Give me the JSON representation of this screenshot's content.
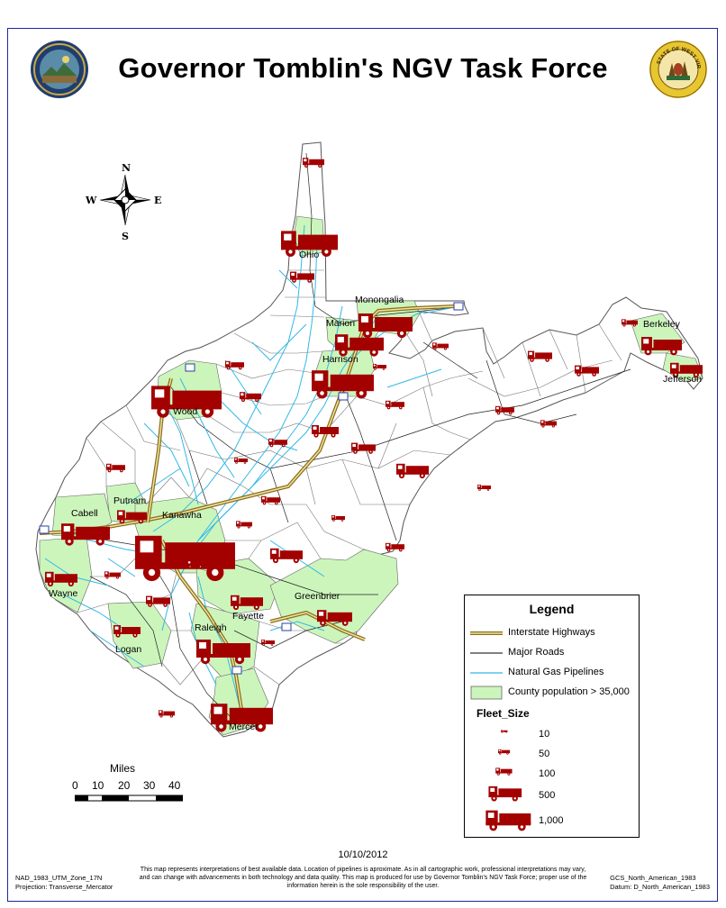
{
  "title": "Governor Tomblin's NGV Task Force",
  "seals": {
    "left_icon": "wv-governor-seal-icon",
    "right_icon": "state-of-west-virginia-seal-icon",
    "right_seal_text": "STATE OF WEST VIRGINIA"
  },
  "compass": {
    "n": "N",
    "s": "S",
    "e": "E",
    "w": "W"
  },
  "counties": [
    {
      "name": "Ohio"
    },
    {
      "name": "Monongalia"
    },
    {
      "name": "Marion"
    },
    {
      "name": "Harrison"
    },
    {
      "name": "Berkeley"
    },
    {
      "name": "Jefferson"
    },
    {
      "name": "Wood"
    },
    {
      "name": "Putnam"
    },
    {
      "name": "Cabell"
    },
    {
      "name": "Kanawha"
    },
    {
      "name": "Wayne"
    },
    {
      "name": "Fayette"
    },
    {
      "name": "Greenbrier"
    },
    {
      "name": "Raleigh"
    },
    {
      "name": "Logan"
    },
    {
      "name": "Mercer"
    }
  ],
  "legend": {
    "title": "Legend",
    "items": [
      {
        "label": "Interstate Highways",
        "icon": "interstate-line"
      },
      {
        "label": "Major Roads",
        "icon": "road-line"
      },
      {
        "label": "Natural Gas Pipelines",
        "icon": "pipeline-line"
      },
      {
        "label": "County population > 35,000",
        "icon": "county-fill"
      }
    ],
    "fleet_title": "Fleet_Size",
    "fleet_sizes": [
      "10",
      "50",
      "100",
      "500",
      "1,000"
    ]
  },
  "colors": {
    "frame": "#1a2a9a",
    "county_fill": "#ccf5bc",
    "pipeline": "#33b8e6",
    "truck": "#a30000",
    "interstate": "#8a6d1a"
  },
  "scale": {
    "title": "Miles",
    "ticks": [
      "0",
      "10",
      "20",
      "30",
      "40"
    ]
  },
  "date": "10/10/2012",
  "disclaimer": "This map represents interpretations of best available data. Location of pipelines is aproximate. As in all cartographic work, professional interpretations may vary, and can change with advancements in both technology and data quality. This map is produced for use by Governor Tomblin's NGV Task Force; proper use of the information herein is the sole responsibility of the user.",
  "footer_left": {
    "line1": "NAD_1983_UTM_Zone_17N",
    "line2": "Projection: Transverse_Mercator"
  },
  "footer_right": {
    "line1": "GCS_North_American_1983",
    "line2": "Datum: D_North_American_1983"
  }
}
